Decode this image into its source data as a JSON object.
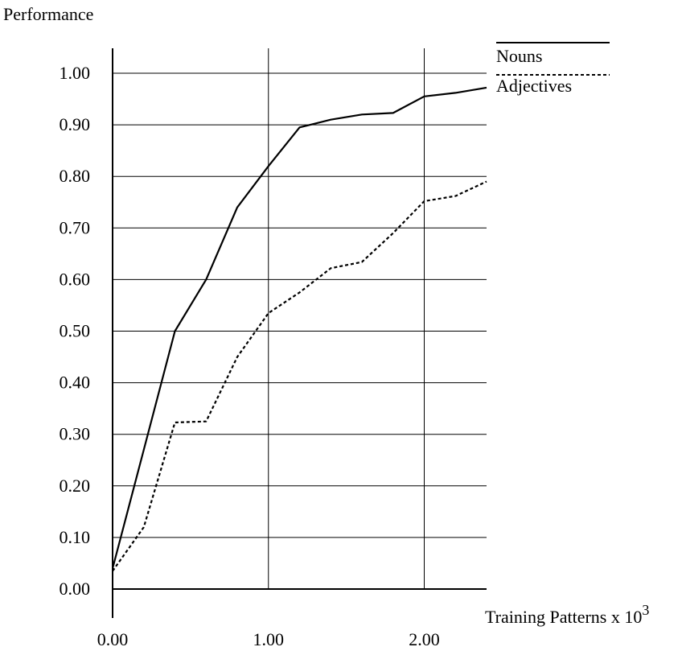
{
  "chart_data": {
    "type": "line",
    "ylabel": "Performance",
    "xlabel_base": "Training Patterns x 10",
    "xlabel_exponent": "3",
    "xlim": [
      0,
      2.4
    ],
    "ylim": [
      0,
      1.0
    ],
    "x_ticks": [
      0.0,
      1.0,
      2.0
    ],
    "x_tick_labels": [
      "0.00",
      "1.00",
      "2.00"
    ],
    "y_ticks": [
      0.0,
      0.1,
      0.2,
      0.3,
      0.4,
      0.5,
      0.6,
      0.7,
      0.8,
      0.9,
      1.0
    ],
    "y_tick_labels": [
      "0.00",
      "0.10",
      "0.20",
      "0.30",
      "0.40",
      "0.50",
      "0.60",
      "0.70",
      "0.80",
      "0.90",
      "1.00"
    ],
    "grid": true,
    "legend_position": "top-right",
    "series": [
      {
        "name": "Nouns",
        "line_style": "solid",
        "x": [
          0.0,
          0.2,
          0.4,
          0.6,
          0.8,
          1.0,
          1.2,
          1.4,
          1.6,
          1.8,
          2.0,
          2.2,
          2.4
        ],
        "values": [
          0.04,
          0.27,
          0.5,
          0.6,
          0.74,
          0.82,
          0.895,
          0.91,
          0.92,
          0.923,
          0.955,
          0.962,
          0.972
        ]
      },
      {
        "name": "Adjectives",
        "line_style": "dotted",
        "x": [
          0.0,
          0.2,
          0.4,
          0.6,
          0.8,
          1.0,
          1.2,
          1.4,
          1.6,
          1.8,
          2.0,
          2.2,
          2.4
        ],
        "values": [
          0.035,
          0.12,
          0.323,
          0.325,
          0.45,
          0.535,
          0.575,
          0.622,
          0.634,
          0.69,
          0.752,
          0.762,
          0.79
        ]
      }
    ]
  }
}
